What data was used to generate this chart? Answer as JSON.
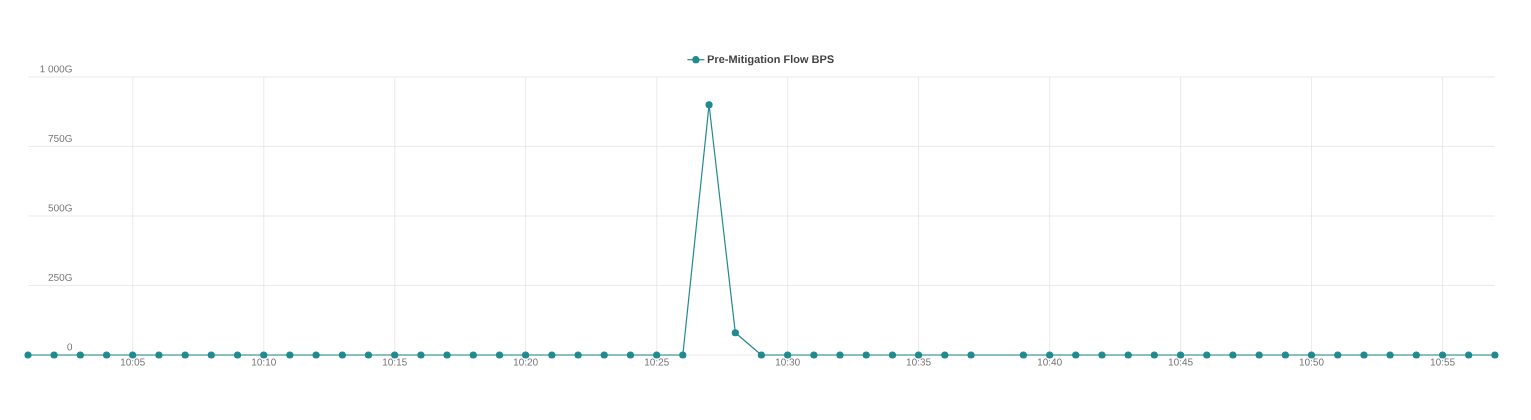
{
  "chart_data": {
    "type": "line",
    "x": [
      10.0167,
      10.0333,
      10.05,
      10.0667,
      10.0833,
      10.1,
      10.1167,
      10.1333,
      10.15,
      10.1667,
      10.1833,
      10.2,
      10.2167,
      10.2333,
      10.25,
      10.2667,
      10.2833,
      10.3,
      10.3167,
      10.3333,
      10.35,
      10.3667,
      10.3833,
      10.4,
      10.4167,
      10.4333,
      10.45,
      10.4667,
      10.4833,
      10.5,
      10.5167,
      10.5333,
      10.55,
      10.5667,
      10.5833,
      10.6,
      10.6167,
      10.65,
      10.6667,
      10.6833,
      10.7,
      10.7167,
      10.7333,
      10.75,
      10.7667,
      10.7833,
      10.8,
      10.8167,
      10.8333,
      10.85,
      10.8667,
      10.8833,
      10.9,
      10.9167,
      10.9333,
      10.95
    ],
    "series": [
      {
        "name": "Pre-Mitigation Flow BPS",
        "color": "#1f8a8f",
        "values": [
          0,
          0,
          0,
          0,
          0,
          0,
          0,
          0,
          0,
          0,
          0,
          0,
          0,
          0,
          0,
          0,
          0,
          0,
          0,
          0,
          0,
          0,
          0,
          0,
          0,
          0,
          900,
          80,
          0,
          0,
          0,
          0,
          0,
          0,
          0,
          0,
          0,
          0,
          0,
          0,
          0,
          0,
          0,
          0,
          0,
          0,
          0,
          0,
          0,
          0,
          0,
          0,
          0,
          0,
          0,
          0
        ]
      }
    ],
    "xlim": [
      10.0167,
      10.95
    ],
    "xticks": [
      {
        "value": 10.0833,
        "label": "10:05"
      },
      {
        "value": 10.1667,
        "label": "10:10"
      },
      {
        "value": 10.25,
        "label": "10:15"
      },
      {
        "value": 10.3333,
        "label": "10:20"
      },
      {
        "value": 10.4167,
        "label": "10:25"
      },
      {
        "value": 10.5,
        "label": "10:30"
      },
      {
        "value": 10.5833,
        "label": "10:35"
      },
      {
        "value": 10.6667,
        "label": "10:40"
      },
      {
        "value": 10.75,
        "label": "10:45"
      },
      {
        "value": 10.8333,
        "label": "10:50"
      },
      {
        "value": 10.9167,
        "label": "10:55"
      }
    ],
    "ylim": [
      0,
      1000
    ],
    "yticks": [
      0,
      {
        "value": 250,
        "label": "250G"
      },
      {
        "value": 500,
        "label": "500G"
      },
      {
        "value": 750,
        "label": "750G"
      },
      {
        "value": 1000,
        "label": "1 000G"
      }
    ],
    "grid": true,
    "legend": "top",
    "marker": "circle",
    "line_style": "solid"
  }
}
